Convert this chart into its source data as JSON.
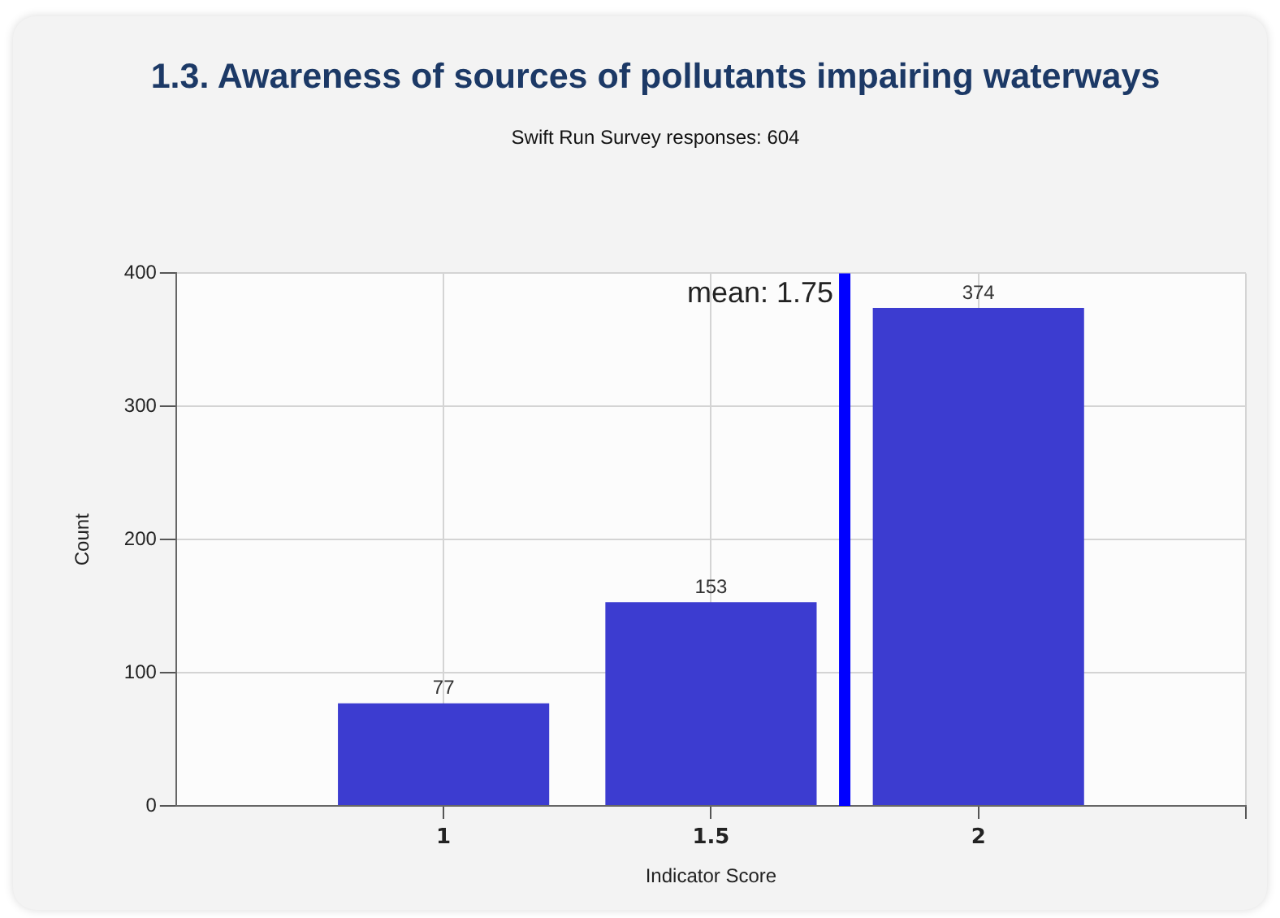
{
  "chart_data": {
    "type": "bar",
    "title": "1.3. Awareness of sources of pollutants impairing waterways",
    "subtitle": "Swift Run Survey responses: 604",
    "xlabel": "Indicator Score",
    "ylabel": "Count",
    "x": [
      1,
      1.5,
      2
    ],
    "values": [
      77,
      153,
      374
    ],
    "color": "#3c3cd0",
    "xlim": [
      0.5,
      2.5
    ],
    "xticks": [
      1,
      1.5,
      2,
      {
        "value": 2.5,
        "label": null
      }
    ],
    "ylim": [
      0,
      400
    ],
    "yticks": [
      0,
      100,
      200,
      300,
      400
    ],
    "grid": true,
    "legend": false,
    "data_labels": true,
    "ref_lines": [
      {
        "axis": "x",
        "value": 1.75,
        "label": "mean: 1.75",
        "color": "#0000ff"
      }
    ]
  }
}
